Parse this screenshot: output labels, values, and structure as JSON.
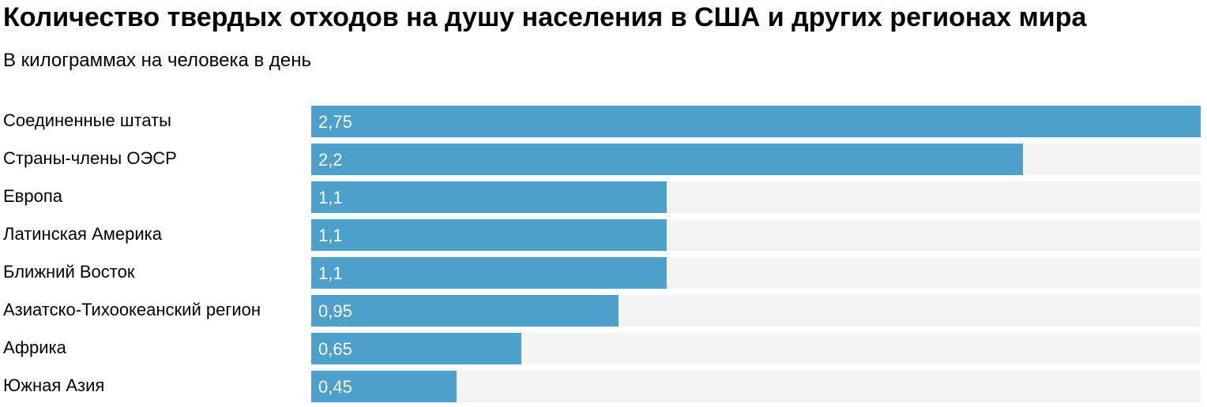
{
  "chart_data": {
    "type": "bar",
    "orientation": "horizontal",
    "title": "Количество твердых отходов на душу населения в США и других регионах мира",
    "subtitle": "В килограммах на человека в день",
    "categories": [
      "Соединенные штаты",
      "Страны-члены ОЭСР",
      "Европа",
      "Латинская Америка",
      "Ближний Восток",
      "Азиатско-Тихоокеанский регион",
      "Африка",
      "Южная Азия"
    ],
    "values": [
      2.75,
      2.2,
      1.1,
      1.1,
      1.1,
      0.95,
      0.65,
      0.45
    ],
    "value_labels": [
      "2,75",
      "2,2",
      "1,1",
      "1,1",
      "1,1",
      "0,95",
      "0,65",
      "0,45"
    ],
    "xlim": [
      0,
      2.75
    ],
    "grid": false,
    "legend": "none",
    "colors": {
      "bar": "#4da0ca",
      "track": "#f3f3f3",
      "value_text": "#ffffff"
    }
  }
}
